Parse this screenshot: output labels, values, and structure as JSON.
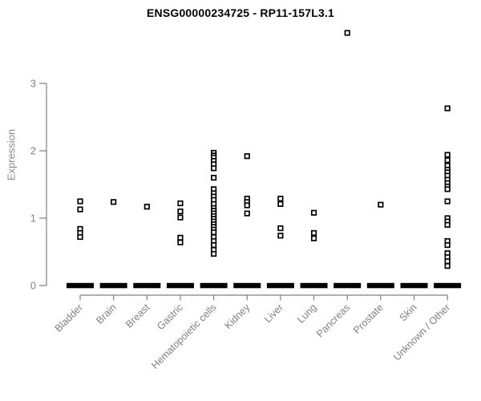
{
  "title": "ENSG00000234725 - RP11-157L3.1",
  "chart_data": {
    "type": "scatter",
    "variant": "strip-plot-by-category",
    "title": "ENSG00000234725 - RP11-157L3.1",
    "xlabel": "",
    "ylabel": "Expression",
    "ylim": [
      0,
      3
    ],
    "yticks": [
      "0",
      "1",
      "2",
      "3"
    ],
    "grid": false,
    "legend": "none",
    "marker": "open-square",
    "colors": {
      "points": "#000000",
      "axis": "#808080",
      "tick_labels": "#808080",
      "title": "#000000",
      "background": "#ffffff"
    },
    "categories": [
      "Bladder",
      "Brain",
      "Breast",
      "Gastric",
      "Hematopoietic cells",
      "Kidney",
      "Liver",
      "Lung",
      "Pancreas",
      "Prostate",
      "Skin",
      "Unknown / Other"
    ],
    "series": [
      {
        "category": "Bladder",
        "zero_cluster": true,
        "values": [
          1.25,
          1.13,
          0.84,
          0.78,
          0.72
        ]
      },
      {
        "category": "Brain",
        "zero_cluster": true,
        "values": [
          1.24
        ]
      },
      {
        "category": "Breast",
        "zero_cluster": true,
        "values": [
          1.17
        ]
      },
      {
        "category": "Gastric",
        "zero_cluster": true,
        "values": [
          1.22,
          1.1,
          1.01,
          0.71,
          0.64
        ]
      },
      {
        "category": "Hematopoietic cells",
        "zero_cluster": true,
        "values": [
          1.97,
          1.93,
          1.9,
          1.85,
          1.8,
          1.74,
          1.6,
          1.43,
          1.37,
          1.32,
          1.27,
          1.21,
          1.15,
          1.11,
          1.07,
          1.03,
          0.99,
          0.95,
          0.91,
          0.87,
          0.83,
          0.79,
          0.72,
          0.66,
          0.6,
          0.53,
          0.47
        ]
      },
      {
        "category": "Kidney",
        "zero_cluster": true,
        "values": [
          1.92,
          1.29,
          1.24,
          1.19,
          1.07
        ]
      },
      {
        "category": "Liver",
        "zero_cluster": true,
        "values": [
          1.29,
          1.21,
          0.85,
          0.74
        ]
      },
      {
        "category": "Lung",
        "zero_cluster": true,
        "values": [
          1.08,
          0.78,
          0.7
        ]
      },
      {
        "category": "Pancreas",
        "zero_cluster": true,
        "values": [
          3.75
        ]
      },
      {
        "category": "Prostate",
        "zero_cluster": true,
        "values": [
          1.2
        ]
      },
      {
        "category": "Skin",
        "zero_cluster": true,
        "values": []
      },
      {
        "category": "Unknown / Other",
        "zero_cluster": true,
        "values": [
          2.63,
          1.94,
          1.86,
          1.78,
          1.72,
          1.68,
          1.63,
          1.57,
          1.52,
          1.47,
          1.43,
          1.25,
          1.0,
          0.95,
          0.9,
          0.66,
          0.6,
          0.48,
          0.42,
          0.36,
          0.29
        ]
      }
    ]
  }
}
